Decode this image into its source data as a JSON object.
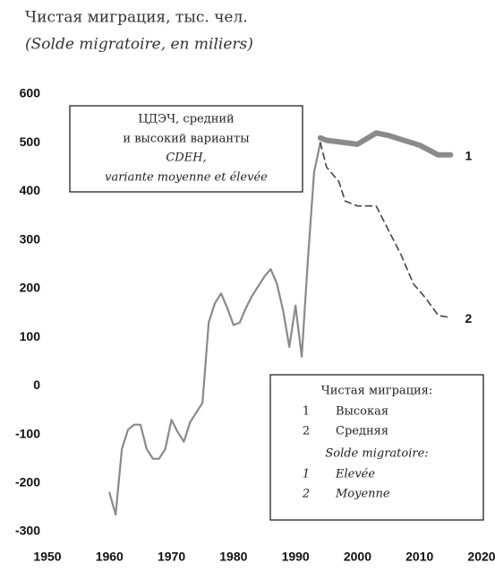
{
  "chart_data": {
    "type": "line",
    "title": "Чистая миграция, тыс. чел.",
    "subtitle": "(Solde migratoire, en miliers)",
    "annotation": [
      "ЦДЭЧ, средний",
      "и высокий варианты",
      "CDEH,",
      "variante moyenne et élevée"
    ],
    "legend_titles": [
      "Чистая миграция:",
      "Solde migratoire:"
    ],
    "xlim": [
      1950,
      2020
    ],
    "xticks": [
      1950,
      1960,
      1970,
      1980,
      1990,
      2000,
      2010,
      2020
    ],
    "ylim": [
      -300,
      600
    ],
    "yticks": [
      -300,
      -200,
      -100,
      0,
      100,
      200,
      300,
      400,
      500,
      600
    ],
    "series": [
      {
        "color": "#8a8a8a",
        "x": [
          1960,
          1961,
          1962,
          1963,
          1964,
          1965,
          1966,
          1967,
          1968,
          1969,
          1970,
          1971,
          1972,
          1973,
          1974,
          1975,
          1976,
          1977,
          1978,
          1979,
          1980,
          1981,
          1982,
          1983,
          1984,
          1985,
          1986,
          1987,
          1988,
          1989,
          1990,
          1991,
          1992,
          1993,
          1994
        ],
        "values": [
          -220,
          -265,
          -130,
          -90,
          -80,
          -80,
          -130,
          -150,
          -150,
          -130,
          -70,
          -95,
          -115,
          -75,
          -55,
          -35,
          130,
          170,
          190,
          160,
          125,
          130,
          160,
          185,
          205,
          225,
          240,
          210,
          155,
          80,
          165,
          60,
          260,
          440,
          500
        ]
      },
      {
        "name": "Высокая",
        "name_fr": "Elevée",
        "label": "1",
        "color": "#8a8a8a",
        "x": [
          1994,
          1995,
          2000,
          2003,
          2005,
          2010,
          2013,
          2015
        ],
        "values": [
          510,
          505,
          497,
          520,
          515,
          495,
          475,
          475
        ]
      },
      {
        "name": "Средняя",
        "name_fr": "Moyenne",
        "label": "2",
        "color": "#444",
        "x": [
          1994,
          1995,
          1997,
          1998,
          2000,
          2003,
          2005,
          2007,
          2009,
          2011,
          2013,
          2015
        ],
        "values": [
          500,
          450,
          420,
          380,
          370,
          370,
          320,
          270,
          210,
          180,
          145,
          140
        ]
      }
    ]
  }
}
